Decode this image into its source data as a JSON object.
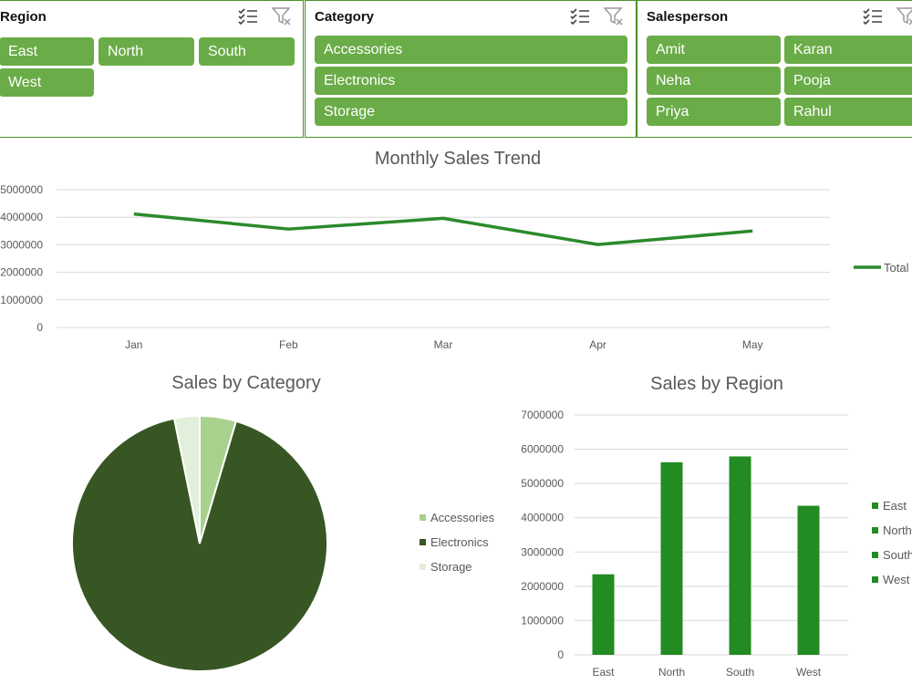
{
  "slicers": {
    "region": {
      "title": "Region",
      "items": [
        "East",
        "North",
        "South",
        "West"
      ],
      "icons": [
        "multi-select-icon",
        "clear-filter-icon"
      ]
    },
    "category": {
      "title": "Category",
      "items": [
        "Accessories",
        "Electronics",
        "Storage"
      ],
      "icons": [
        "multi-select-icon",
        "clear-filter-icon"
      ]
    },
    "salesperson": {
      "title": "Salesperson",
      "items": [
        "Amit",
        "Karan",
        "Neha",
        "Pooja",
        "Priya",
        "Rahul"
      ],
      "icons": [
        "multi-select-icon",
        "clear-filter-icon"
      ]
    }
  },
  "colors": {
    "chip": "#6aac47",
    "slicer_border": "#4e8f2c",
    "trend_line": "#2b8a2b",
    "bar": "#228b22",
    "accessories": "#a9d18e",
    "electronics": "#375623",
    "storage": "#e2efda"
  },
  "chart_data": [
    {
      "type": "line",
      "title": "Monthly Sales Trend",
      "categories": [
        "Jan",
        "Feb",
        "Mar",
        "Apr",
        "May"
      ],
      "series": [
        {
          "name": "Total",
          "values": [
            4120000,
            3570000,
            3960000,
            3010000,
            3500000
          ]
        }
      ],
      "ylim": [
        0,
        5000000
      ],
      "yticks": [
        0,
        1000000,
        2000000,
        3000000,
        4000000,
        5000000
      ],
      "ytick_labels": [
        "0",
        "1000000",
        "2000000",
        "3000000",
        "4000000",
        "5000000"
      ],
      "grid": true,
      "legend": "right"
    },
    {
      "type": "pie",
      "title": "Sales by Category",
      "categories": [
        "Accessories",
        "Electronics",
        "Storage"
      ],
      "values": [
        4.6,
        92.2,
        3.2
      ],
      "legend": "right"
    },
    {
      "type": "bar",
      "title": "Sales by Region",
      "categories": [
        "East",
        "North",
        "South",
        "West"
      ],
      "values": [
        2350000,
        5620000,
        5790000,
        4350000
      ],
      "ylim": [
        0,
        7000000
      ],
      "yticks": [
        0,
        1000000,
        2000000,
        3000000,
        4000000,
        5000000,
        6000000,
        7000000
      ],
      "ytick_labels": [
        "0",
        "1000000",
        "2000000",
        "3000000",
        "4000000",
        "5000000",
        "6000000",
        "7000000"
      ],
      "grid": true,
      "legend": "right"
    }
  ]
}
